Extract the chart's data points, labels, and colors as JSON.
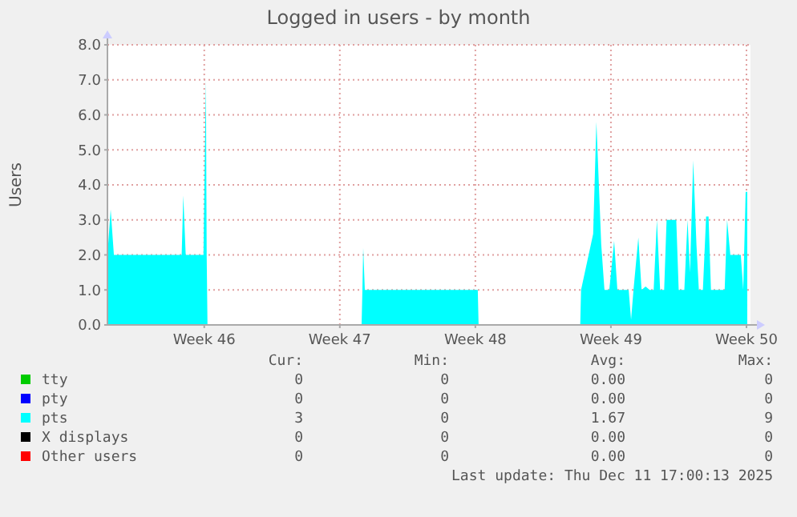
{
  "chart_data": {
    "type": "area",
    "title": "Logged in users - by month",
    "ylabel": "Users",
    "xlim": [
      "2025-11-05T00:00",
      "2025-12-08T05:00"
    ],
    "xticks": [
      {
        "value": "2025-11-10",
        "label": "Week 46"
      },
      {
        "value": "2025-11-17",
        "label": "Week 47"
      },
      {
        "value": "2025-11-24",
        "label": "Week 48"
      },
      {
        "value": "2025-12-01",
        "label": "Week 49"
      },
      {
        "value": "2025-12-08",
        "label": "Week 50"
      }
    ],
    "ylim": [
      0,
      8
    ],
    "yticks": [
      {
        "value": 0,
        "label": "0.0"
      },
      {
        "value": 1,
        "label": "1.0"
      },
      {
        "value": 2,
        "label": "2.0"
      },
      {
        "value": 3,
        "label": "3.0"
      },
      {
        "value": 4,
        "label": "4.0"
      },
      {
        "value": 5,
        "label": "5.0"
      },
      {
        "value": 6,
        "label": "6.0"
      },
      {
        "value": 7,
        "label": "7.0"
      },
      {
        "value": 8,
        "label": "8.0"
      }
    ],
    "grid": true,
    "legend": "bottom",
    "series": [
      {
        "name": "tty",
        "color": "#00cc00"
      },
      {
        "name": "pty",
        "color": "#0000ff"
      },
      {
        "name": "pts",
        "color": "#00ffff",
        "x": [
          "2025-11-05T00:00",
          "2025-11-05T04:00",
          "2025-11-05T08:00",
          "2025-11-08T20:00",
          "2025-11-08T22:00",
          "2025-11-09T01:00",
          "2025-11-09T23:00",
          "2025-11-10T02:00",
          "2025-11-10T03:00",
          "2025-11-10T04:00",
          "2025-11-18T03:00",
          "2025-11-18T04:00",
          "2025-11-18T05:00",
          "2025-11-18T07:00",
          "2025-11-24T03:00",
          "2025-11-24T04:00",
          "2025-11-29T10:00",
          "2025-11-29T11:00",
          "2025-11-30T02:00",
          "2025-11-30T06:00",
          "2025-11-30T12:00",
          "2025-11-30T16:00",
          "2025-11-30T22:00",
          "2025-12-01T04:00",
          "2025-12-01T08:00",
          "2025-12-01T22:00",
          "2025-12-02T01:00",
          "2025-12-02T04:00",
          "2025-12-02T10:00",
          "2025-12-02T14:00",
          "2025-12-02T19:00",
          "2025-12-03T00:00",
          "2025-12-03T05:00",
          "2025-12-03T09:00",
          "2025-12-03T13:00",
          "2025-12-03T18:00",
          "2025-12-03T21:00",
          "2025-12-04T09:00",
          "2025-12-04T12:00",
          "2025-12-04T19:00",
          "2025-12-04T23:00",
          "2025-12-05T02:00",
          "2025-12-05T06:00",
          "2025-12-05T10:00",
          "2025-12-05T13:00",
          "2025-12-05T18:00",
          "2025-12-05T22:00",
          "2025-12-06T01:00",
          "2025-12-06T04:00",
          "2025-12-06T21:00",
          "2025-12-07T00:00",
          "2025-12-07T04:00",
          "2025-12-07T17:00",
          "2025-12-07T20:00",
          "2025-12-07T23:00",
          "2025-12-08T01:00"
        ],
        "values": [
          2,
          3.3,
          2,
          2,
          3.7,
          2,
          2,
          7,
          2,
          0,
          0,
          1,
          2.2,
          1,
          1,
          0,
          0,
          1,
          2.6,
          5.8,
          2.3,
          1,
          1,
          2.4,
          1,
          1,
          0.15,
          1,
          2.5,
          1,
          1.1,
          1,
          1,
          3,
          1,
          1,
          3,
          3,
          1,
          1,
          3,
          1.5,
          4.7,
          2.3,
          1,
          1,
          3.1,
          3.1,
          1,
          1,
          3,
          2,
          2,
          1,
          3.8,
          3.8
        ]
      },
      {
        "name": "X displays",
        "color": "#000000"
      },
      {
        "name": "Other users",
        "color": "#ff0000"
      }
    ],
    "annotations": [
      "Cur:",
      "Min:",
      "Avg:",
      "Max:",
      "0",
      "0",
      "0.00",
      "0",
      "0",
      "0",
      "0.00",
      "0",
      "3",
      "0",
      "1.67",
      "9",
      "0",
      "0",
      "0.00",
      "0",
      "0",
      "0",
      "0.00",
      "0",
      "Last update: Thu Dec 11 17:00:13 2025"
    ]
  }
}
